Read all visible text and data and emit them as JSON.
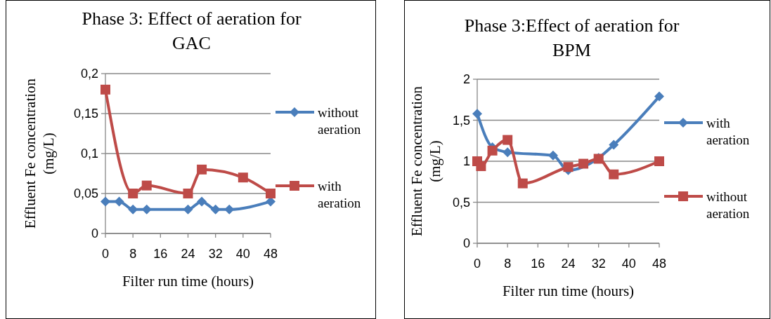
{
  "chart_data": [
    {
      "type": "line",
      "title": "Phase 3: Effect of aeration for GAC",
      "xlabel": "Filter run time (hours)",
      "ylabel": "Effluent Fe concentration (mg/L)",
      "xlim": [
        0,
        48
      ],
      "xticks": [
        0,
        8,
        16,
        24,
        32,
        40,
        48
      ],
      "ylim": [
        0,
        0.2
      ],
      "yticks": [
        0,
        {
          "value": 0.05,
          "label": "0,05"
        },
        {
          "value": 0.1,
          "label": "0,1"
        },
        {
          "value": 0.15,
          "label": "0,15"
        },
        {
          "value": 0.2,
          "label": "0,2"
        }
      ],
      "grid": "y",
      "legend": "right",
      "line_style": "solid",
      "series": [
        {
          "name": "without aeration",
          "color": "#4a7ebb",
          "marker": "diamond",
          "x": [
            0,
            4,
            8,
            12,
            24,
            28,
            32,
            36,
            48
          ],
          "values": [
            0.04,
            0.04,
            0.03,
            0.03,
            0.03,
            0.04,
            0.03,
            0.03,
            0.04
          ]
        },
        {
          "name": "with aeration",
          "color": "#be4b48",
          "marker": "square",
          "x": [
            0,
            8,
            12,
            24,
            28,
            40,
            48
          ],
          "values": [
            0.18,
            0.05,
            0.06,
            0.05,
            0.08,
            0.07,
            0.05
          ]
        }
      ]
    },
    {
      "type": "line",
      "title": "Phase 3:Effect of aeration for BPM",
      "xlabel": "Filter run time (hours)",
      "ylabel": "Effluent Fe concentration (mg/L)",
      "xlim": [
        0,
        48
      ],
      "xticks": [
        0,
        8,
        16,
        24,
        32,
        40,
        48
      ],
      "ylim": [
        0,
        2
      ],
      "yticks": [
        0,
        {
          "value": 0.5,
          "label": "0,5"
        },
        1,
        {
          "value": 1.5,
          "label": "1,5"
        },
        2
      ],
      "grid": "y",
      "legend": "right",
      "line_style": "solid",
      "series": [
        {
          "name": "with aeration",
          "color": "#4a7ebb",
          "marker": "diamond",
          "x": [
            0,
            4,
            8,
            20,
            24,
            32,
            36,
            48
          ],
          "values": [
            1.58,
            1.17,
            1.11,
            1.07,
            0.89,
            1.04,
            1.2,
            1.79
          ]
        },
        {
          "name": "without aeration",
          "color": "#be4b48",
          "marker": "square",
          "x": [
            0,
            1,
            4,
            8,
            12,
            24,
            28,
            32,
            36,
            48
          ],
          "values": [
            1.0,
            0.94,
            1.13,
            1.26,
            0.73,
            0.93,
            0.97,
            1.03,
            0.84,
            1.0
          ]
        }
      ]
    }
  ]
}
